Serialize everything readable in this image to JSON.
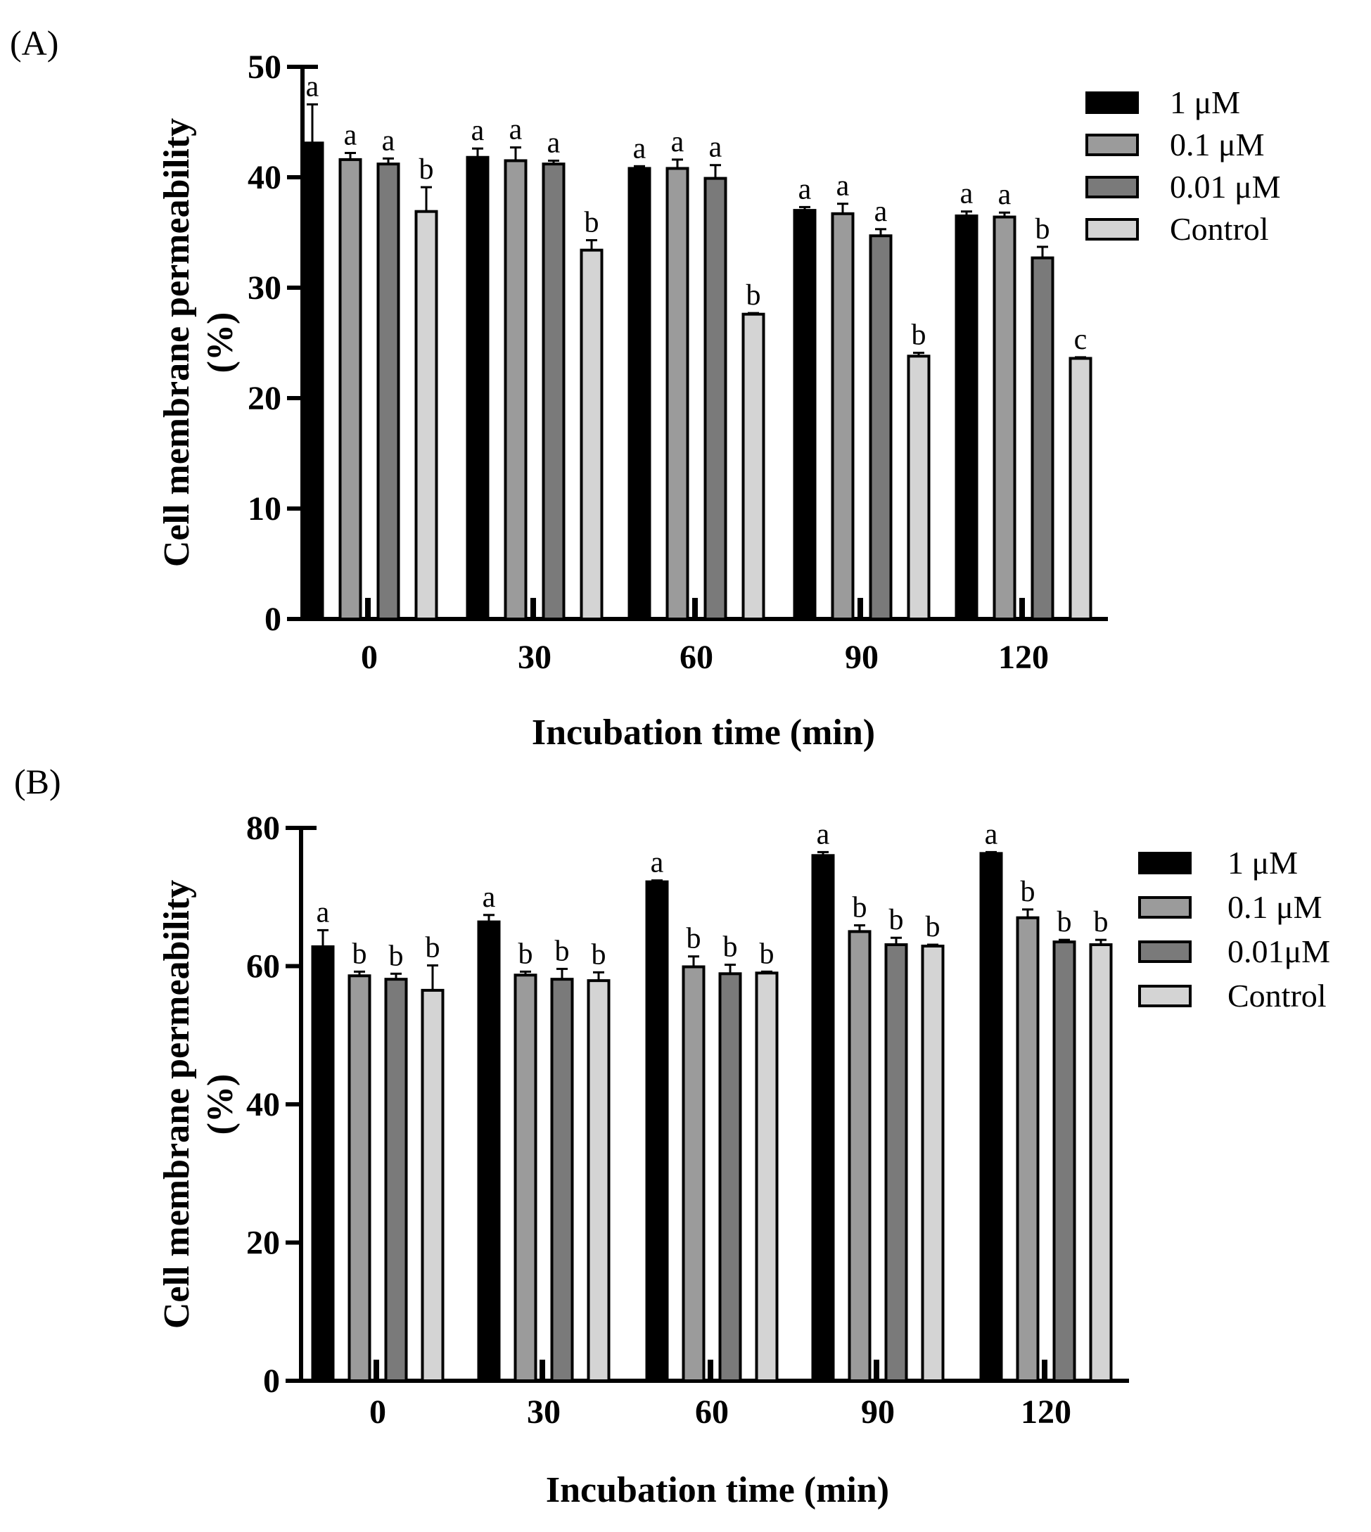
{
  "chart_data": [
    {
      "panel_label": "(A)",
      "type": "bar",
      "xlabel": "Incubation time (min)",
      "ylabel_lines": [
        "Cell membrane permeability",
        "(%)"
      ],
      "ylim": [
        0,
        50
      ],
      "yticks": [
        0,
        10,
        20,
        30,
        40,
        50
      ],
      "categories": [
        "0",
        "30",
        "60",
        "90",
        "120"
      ],
      "legend_position": "top-right",
      "series": [
        {
          "name": "1 μM",
          "color": "#000000",
          "values": [
            43.1,
            41.8,
            40.8,
            37.0,
            36.5
          ],
          "errors": [
            3.5,
            0.8,
            0.2,
            0.3,
            0.4
          ],
          "letters": [
            "a",
            "a",
            "a",
            "a",
            "a"
          ]
        },
        {
          "name": "0.1 μM",
          "color": "#9b9b9b",
          "values": [
            41.6,
            41.5,
            40.8,
            36.7,
            36.4
          ],
          "errors": [
            0.6,
            1.2,
            0.8,
            0.9,
            0.4
          ],
          "letters": [
            "a",
            "a",
            "a",
            "a",
            "a"
          ]
        },
        {
          "name": "0.01 μM",
          "color": "#7a7a7a",
          "values": [
            41.2,
            41.2,
            39.9,
            34.7,
            32.7
          ],
          "errors": [
            0.5,
            0.3,
            1.2,
            0.6,
            1.0
          ],
          "letters": [
            "a",
            "a",
            "a",
            "a",
            "b"
          ]
        },
        {
          "name": "Control",
          "color": "#d4d4d4",
          "values": [
            36.9,
            33.4,
            27.6,
            23.8,
            23.6
          ],
          "errors": [
            2.2,
            0.9,
            0.1,
            0.3,
            0.1
          ],
          "letters": [
            "b",
            "b",
            "b",
            "b",
            "c"
          ]
        }
      ]
    },
    {
      "panel_label": "(B)",
      "type": "bar",
      "xlabel": "Incubation time (min)",
      "ylabel_lines": [
        "Cell membrane permeability",
        "(%)"
      ],
      "ylim": [
        0,
        80
      ],
      "yticks": [
        0,
        20,
        40,
        60,
        80
      ],
      "categories": [
        "0",
        "30",
        "60",
        "90",
        "120"
      ],
      "legend_position": "top-right",
      "series": [
        {
          "name": "1 μM",
          "color": "#000000",
          "values": [
            62.8,
            66.4,
            72.2,
            76.0,
            76.3
          ],
          "errors": [
            2.4,
            1.0,
            0.2,
            0.5,
            0.2
          ],
          "letters": [
            "a",
            "a",
            "a",
            "a",
            "a"
          ]
        },
        {
          "name": "0.1 μM",
          "color": "#9b9b9b",
          "values": [
            58.6,
            58.7,
            59.9,
            65.0,
            67.0
          ],
          "errors": [
            0.6,
            0.5,
            1.5,
            0.9,
            1.2
          ],
          "letters": [
            "b",
            "b",
            "b",
            "b",
            "b"
          ]
        },
        {
          "name": "0.01μM",
          "color": "#7a7a7a",
          "values": [
            58.1,
            58.1,
            58.9,
            63.1,
            63.5
          ],
          "errors": [
            0.8,
            1.5,
            1.3,
            1.0,
            0.3
          ],
          "letters": [
            "b",
            "b",
            "b",
            "b",
            "b"
          ]
        },
        {
          "name": "Control",
          "color": "#d4d4d4",
          "values": [
            56.5,
            57.9,
            59.0,
            62.9,
            63.1
          ],
          "errors": [
            3.6,
            1.2,
            0.2,
            0.2,
            0.7
          ],
          "letters": [
            "b",
            "b",
            "b",
            "b",
            "b"
          ]
        }
      ]
    }
  ]
}
